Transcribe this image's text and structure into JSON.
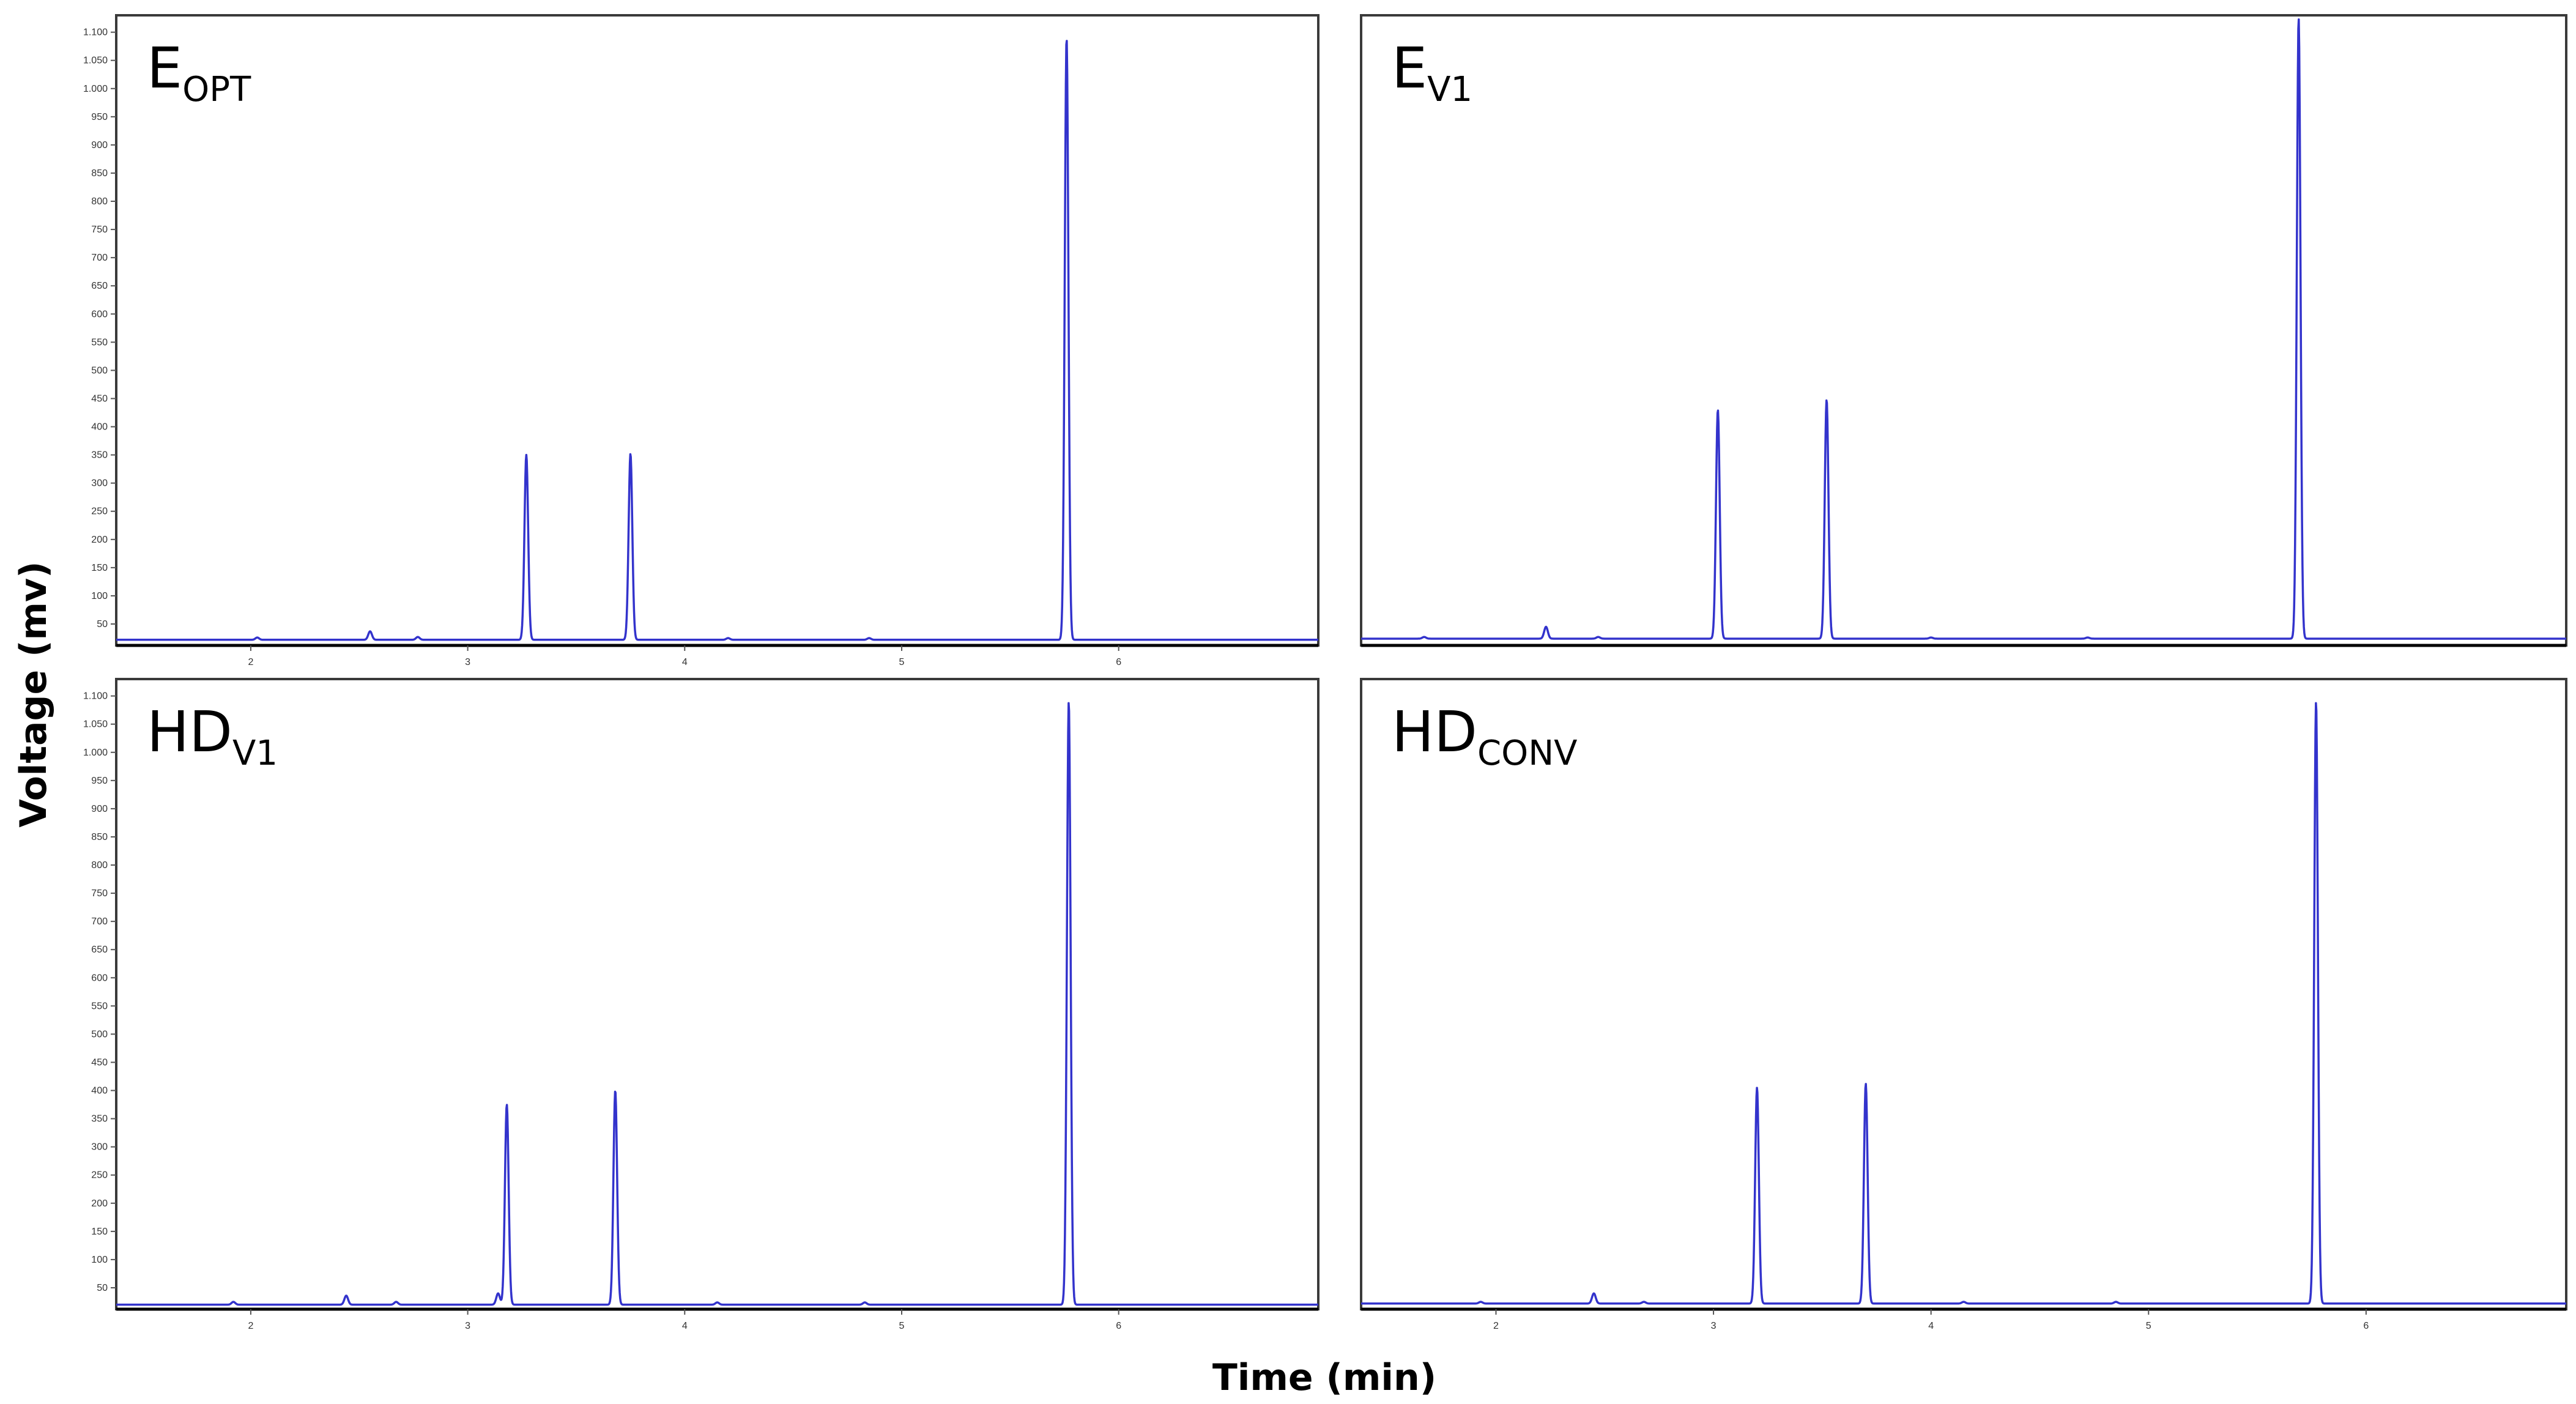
{
  "chart_data": {
    "type": "line",
    "xlabel": "Time (min)",
    "ylabel": "Voltage (mv)",
    "colors": {
      "trace": "#3333cc"
    },
    "grid": false,
    "panels": [
      {
        "title": "E",
        "title_sub": "OPT",
        "xlim": [
          1.38,
          6.92
        ],
        "ylim": [
          12,
          1130
        ],
        "x_ticks": [
          2,
          3,
          4,
          5,
          6
        ],
        "x_tick_labels": [
          "2",
          "3",
          "4",
          "5",
          "6"
        ],
        "y_ticks": [
          50,
          100,
          150,
          200,
          250,
          300,
          350,
          400,
          450,
          500,
          550,
          600,
          650,
          700,
          750,
          800,
          850,
          900,
          950,
          1000,
          1050,
          1100
        ],
        "y_tick_labels": [
          "50",
          "100",
          "150",
          "200",
          "250",
          "300",
          "350",
          "400",
          "450",
          "500",
          "550",
          "600",
          "650",
          "700",
          "750",
          "800",
          "850",
          "900",
          "950",
          "1.000",
          "1.050",
          "1.100"
        ],
        "baseline": 22,
        "peaks": [
          {
            "x": 2.03,
            "y": 26
          },
          {
            "x": 2.55,
            "y": 37
          },
          {
            "x": 2.77,
            "y": 27
          },
          {
            "x": 3.27,
            "y": 350
          },
          {
            "x": 3.75,
            "y": 352
          },
          {
            "x": 4.2,
            "y": 25
          },
          {
            "x": 4.85,
            "y": 25
          },
          {
            "x": 5.76,
            "y": 1090
          }
        ]
      },
      {
        "title": "E",
        "title_sub": "V1",
        "xlim": [
          1.38,
          6.92
        ],
        "ylim": [
          12,
          1130
        ],
        "x_ticks": [],
        "x_tick_labels": [],
        "y_ticks": [],
        "y_tick_labels": [],
        "baseline": 24,
        "peaks": [
          {
            "x": 1.67,
            "y": 27
          },
          {
            "x": 2.23,
            "y": 45
          },
          {
            "x": 2.47,
            "y": 27
          },
          {
            "x": 3.02,
            "y": 430
          },
          {
            "x": 3.52,
            "y": 448
          },
          {
            "x": 4.0,
            "y": 26
          },
          {
            "x": 4.72,
            "y": 26
          },
          {
            "x": 5.69,
            "y": 1125
          }
        ]
      },
      {
        "title": "HD",
        "title_sub": "V1",
        "xlim": [
          1.38,
          6.92
        ],
        "ylim": [
          12,
          1130
        ],
        "x_ticks": [
          2,
          3,
          4,
          5,
          6
        ],
        "x_tick_labels": [
          "2",
          "3",
          "4",
          "5",
          "6"
        ],
        "y_ticks": [
          50,
          100,
          150,
          200,
          250,
          300,
          350,
          400,
          450,
          500,
          550,
          600,
          650,
          700,
          750,
          800,
          850,
          900,
          950,
          1000,
          1050,
          1100
        ],
        "y_tick_labels": [
          "50",
          "100",
          "150",
          "200",
          "250",
          "300",
          "350",
          "400",
          "450",
          "500",
          "550",
          "600",
          "650",
          "700",
          "750",
          "800",
          "850",
          "900",
          "950",
          "1.000",
          "1.050",
          "1.100"
        ],
        "baseline": 20,
        "peaks": [
          {
            "x": 1.92,
            "y": 25
          },
          {
            "x": 2.44,
            "y": 36
          },
          {
            "x": 2.67,
            "y": 25
          },
          {
            "x": 3.14,
            "y": 40
          },
          {
            "x": 3.18,
            "y": 375
          },
          {
            "x": 3.68,
            "y": 400
          },
          {
            "x": 4.15,
            "y": 24
          },
          {
            "x": 4.83,
            "y": 24
          },
          {
            "x": 5.77,
            "y": 1090
          }
        ]
      },
      {
        "title": "HD",
        "title_sub": "CONV",
        "xlim": [
          1.38,
          6.92
        ],
        "ylim": [
          12,
          1130
        ],
        "x_ticks": [
          2,
          3,
          4,
          5,
          6
        ],
        "x_tick_labels": [
          "2",
          "3",
          "4",
          "5",
          "6"
        ],
        "y_ticks": [],
        "y_tick_labels": [],
        "baseline": 22,
        "peaks": [
          {
            "x": 1.93,
            "y": 25
          },
          {
            "x": 2.45,
            "y": 40
          },
          {
            "x": 2.68,
            "y": 25
          },
          {
            "x": 3.2,
            "y": 405
          },
          {
            "x": 3.7,
            "y": 412
          },
          {
            "x": 4.15,
            "y": 25
          },
          {
            "x": 4.85,
            "y": 25
          },
          {
            "x": 5.77,
            "y": 1090
          }
        ]
      }
    ]
  }
}
